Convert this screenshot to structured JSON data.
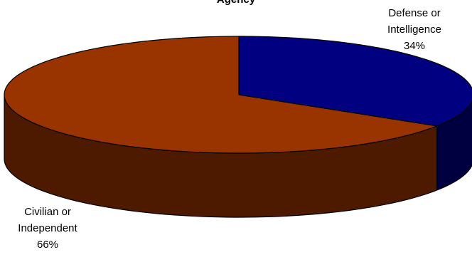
{
  "chart_data": {
    "type": "pie",
    "style": "3d",
    "title": "Agency",
    "slices": [
      {
        "name_lines": [
          "Defense or",
          "Intelligence"
        ],
        "percent_label": "34%",
        "value": 34,
        "color": "#000080"
      },
      {
        "name_lines": [
          "Civilian or",
          "Independent"
        ],
        "percent_label": "66%",
        "value": 66,
        "color": "#993300"
      }
    ]
  }
}
